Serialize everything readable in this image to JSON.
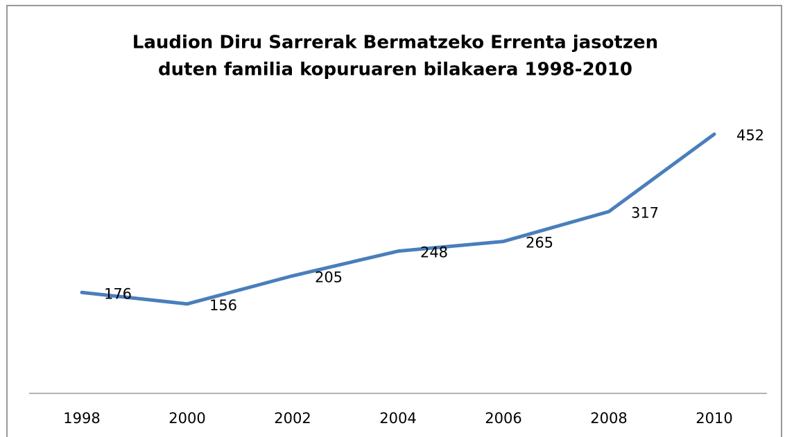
{
  "chart_data": {
    "type": "line",
    "title": [
      "Laudion Diru Sarrerak Bermatzeko Errenta jasotzen",
      "duten familia kopuruaren  bilakaera 1998-2010"
    ],
    "categories": [
      "1998",
      "2000",
      "2002",
      "2004",
      "2006",
      "2008",
      "2010"
    ],
    "values": [
      176,
      156,
      205,
      248,
      265,
      317,
      452
    ],
    "color": "#4a7ebb",
    "ylim": [
      0,
      500
    ]
  }
}
